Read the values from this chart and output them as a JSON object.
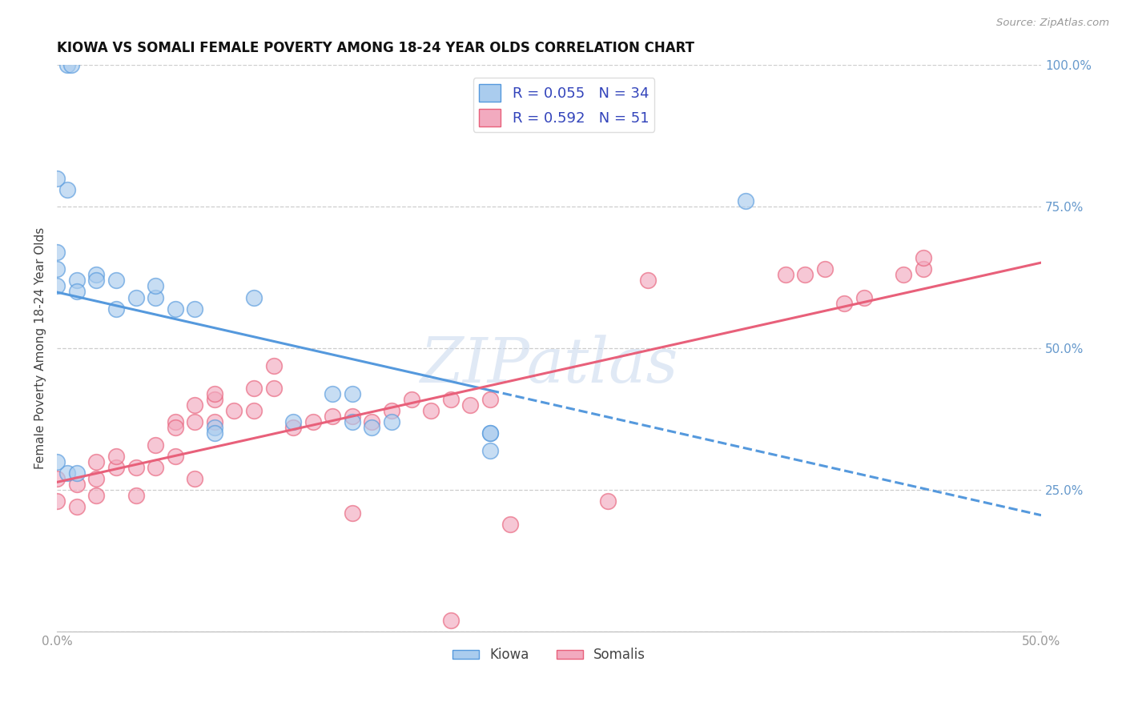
{
  "title": "KIOWA VS SOMALI FEMALE POVERTY AMONG 18-24 YEAR OLDS CORRELATION CHART",
  "source": "Source: ZipAtlas.com",
  "ylabel": "Female Poverty Among 18-24 Year Olds",
  "xlim": [
    0.0,
    0.5
  ],
  "ylim": [
    0.0,
    1.0
  ],
  "xticks": [
    0.0,
    0.1,
    0.2,
    0.3,
    0.4,
    0.5
  ],
  "xticklabels": [
    "0.0%",
    "",
    "",
    "",
    "",
    "50.0%"
  ],
  "yticks": [
    0.0,
    0.25,
    0.5,
    0.75,
    1.0
  ],
  "yticklabels": [
    "",
    "25.0%",
    "50.0%",
    "75.0%",
    "100.0%"
  ],
  "background_color": "#ffffff",
  "grid_color": "#c8c8c8",
  "watermark": "ZIPatlas",
  "kiowa_color": "#aaccee",
  "somali_color": "#f2aabf",
  "kiowa_line_color": "#5599dd",
  "somali_line_color": "#e8607a",
  "kiowa_R": 0.055,
  "kiowa_N": 34,
  "somali_R": 0.592,
  "somali_N": 51,
  "legend_text_color": "#3344bb",
  "kiowa_x": [
    0.005,
    0.007,
    0.005,
    0.01,
    0.01,
    0.02,
    0.02,
    0.03,
    0.03,
    0.04,
    0.05,
    0.05,
    0.06,
    0.07,
    0.08,
    0.08,
    0.1,
    0.12,
    0.14,
    0.15,
    0.15,
    0.16,
    0.17,
    0.22,
    0.22,
    0.22,
    0.005,
    0.01,
    0.35,
    0.0,
    0.0,
    0.0,
    0.0,
    0.0
  ],
  "kiowa_y": [
    1.0,
    1.0,
    0.78,
    0.62,
    0.6,
    0.63,
    0.62,
    0.62,
    0.57,
    0.59,
    0.59,
    0.61,
    0.57,
    0.57,
    0.36,
    0.35,
    0.59,
    0.37,
    0.42,
    0.42,
    0.37,
    0.36,
    0.37,
    0.35,
    0.35,
    0.32,
    0.28,
    0.28,
    0.76,
    0.8,
    0.67,
    0.64,
    0.61,
    0.3
  ],
  "somali_x": [
    0.0,
    0.0,
    0.01,
    0.01,
    0.02,
    0.02,
    0.02,
    0.03,
    0.03,
    0.04,
    0.04,
    0.05,
    0.05,
    0.06,
    0.06,
    0.07,
    0.07,
    0.08,
    0.08,
    0.09,
    0.1,
    0.1,
    0.11,
    0.11,
    0.12,
    0.13,
    0.14,
    0.15,
    0.16,
    0.17,
    0.18,
    0.19,
    0.2,
    0.21,
    0.22,
    0.23,
    0.28,
    0.3,
    0.37,
    0.38,
    0.39,
    0.4,
    0.41,
    0.43,
    0.44,
    0.44,
    0.15,
    0.06,
    0.07,
    0.08,
    0.2
  ],
  "somali_y": [
    0.23,
    0.27,
    0.22,
    0.26,
    0.24,
    0.27,
    0.3,
    0.29,
    0.31,
    0.24,
    0.29,
    0.29,
    0.33,
    0.31,
    0.37,
    0.27,
    0.37,
    0.37,
    0.41,
    0.39,
    0.39,
    0.43,
    0.43,
    0.47,
    0.36,
    0.37,
    0.38,
    0.21,
    0.37,
    0.39,
    0.41,
    0.39,
    0.41,
    0.4,
    0.41,
    0.19,
    0.23,
    0.62,
    0.63,
    0.63,
    0.64,
    0.58,
    0.59,
    0.63,
    0.64,
    0.66,
    0.38,
    0.36,
    0.4,
    0.42,
    0.02
  ],
  "kiowa_trend_x_start": 0.0,
  "kiowa_trend_x_solid_end": 0.22,
  "kiowa_trend_x_end": 0.5,
  "somali_trend_x_start": 0.0,
  "somali_trend_x_end": 0.5
}
